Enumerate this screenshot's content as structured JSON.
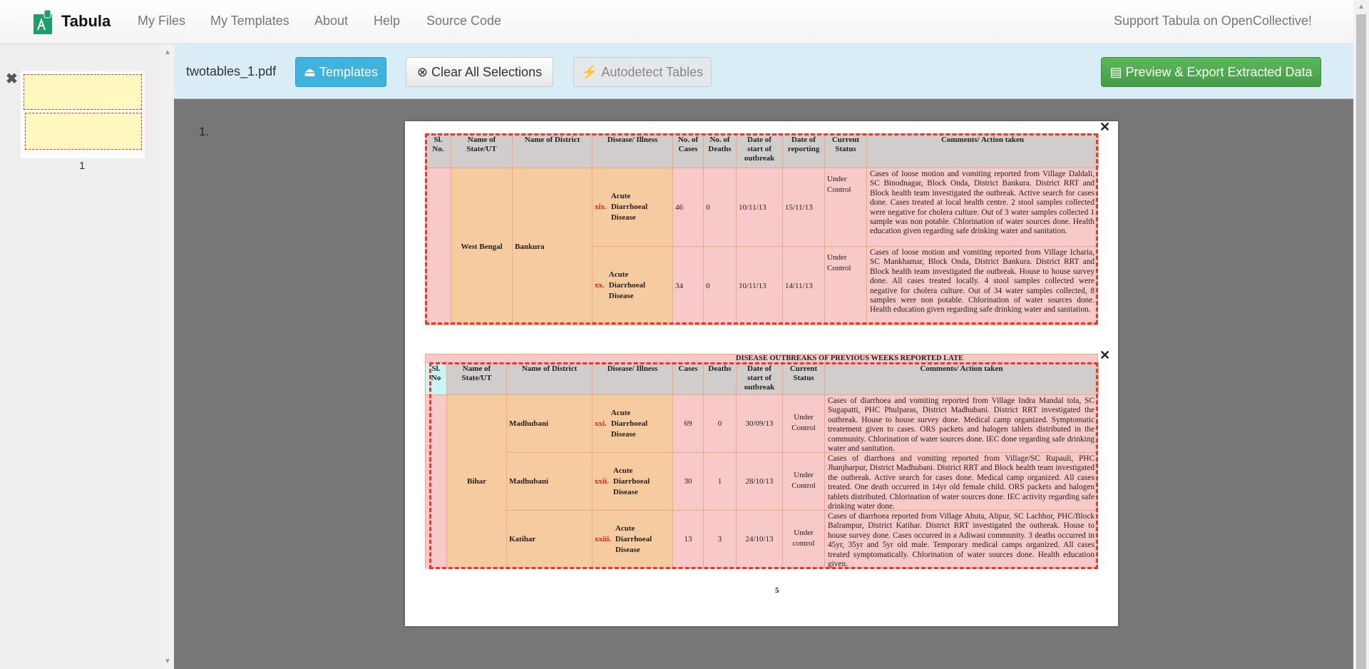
{
  "nav": {
    "brand": "Tabula",
    "links": [
      "My Files",
      "My Templates",
      "About",
      "Help",
      "Source Code"
    ],
    "support": "Support Tabula on OpenCollective!"
  },
  "toolbar": {
    "filename": "twotables_1.pdf",
    "templates": "Templates",
    "clear": "Clear All Selections",
    "autodetect": "Autodetect Tables",
    "export": "Preview & Export Extracted Data"
  },
  "sidebar": {
    "page_label": "1"
  },
  "page": {
    "number_label": "1.",
    "footer": "5"
  },
  "colors": {
    "primary": "#31b0d5",
    "success": "#4cae4c",
    "selection": "#e53935"
  },
  "table1": {
    "headers": [
      "Sl. No.",
      "Name of State/UT",
      "Name of District",
      "Disease/ Illness",
      "No. of Cases",
      "No. of Deaths",
      "Date of start of outbreak",
      "Date of reporting",
      "Current Status",
      "Comments/ Action taken"
    ],
    "state": "West Bengal",
    "district": "Bankura",
    "rows": [
      {
        "num": "xix.",
        "disease": "Acute Diarrhoeal Disease",
        "cases": "46",
        "deaths": "0",
        "start": "10/11/13",
        "reported": "15/11/13",
        "status": "Under Control",
        "comments": "Cases of loose motion and vomiting reported from Village Daldali, SC Binodnagar, Block Onda, District Bankura. District RRT and Block health team investigated the outbreak. Active search for cases done. Cases treated at local health centre. 2 stool samples collected were negative for cholera culture. Out of 3 water samples collected 1 sample was non potable. Chlorination of water sources done. Health education given regarding safe drinking water and sanitation."
      },
      {
        "num": "xx.",
        "disease": "Acute Diarrhoeal Disease",
        "cases": "34",
        "deaths": "0",
        "start": "10/11/13",
        "reported": "14/11/13",
        "status": "Under Control",
        "comments": "Cases of loose motion and vomiting reported from Village Icharia, SC Mankhamar, Block Onda, District Bankura. District RRT and Block health team investigated the outbreak. House to house survey done. All cases treated locally. 4 stool samples collected were negative for cholera culture. Out of 34 water samples collected, 8 samples were non potable. Chlorination of water sources done. Health education given regarding safe drinking water and sanitation."
      }
    ]
  },
  "table2": {
    "title": "DISEASE OUTBREAKS  OF PREVIOUS WEEKS REPORTED LATE",
    "headers": [
      "Sl. No",
      "Name of State/UT",
      "Name of District",
      "Disease/ Illness",
      "Cases",
      "Deaths",
      "Date of start of outbreak",
      "Current Status",
      "Comments/ Action taken"
    ],
    "state": "Bihar",
    "rows": [
      {
        "district": "Madhubani",
        "num": "xxi.",
        "disease": "Acute Diarrhoeal Disease",
        "cases": "69",
        "deaths": "0",
        "start": "30/09/13",
        "status": "Under Control",
        "comments": "Cases of diarrhoea and vomiting reported from Village Indra Mandal tola, SC Sugapatti, PHC Phulparas, District Madhubani. District RRT investigated the outbreak. House to house survey done. Medical camp organized. Symptomatic treatement given to cases. ORS packets and halogen tablets distributed in the community. Chlorination of water sources done. IEC done regarding safe drinking water and sanitation."
      },
      {
        "district": "Madhubani",
        "num": "xxii.",
        "disease": "Acute Diarrhoeal Disease",
        "cases": "30",
        "deaths": "1",
        "start": "28/10/13",
        "status": "Under Control",
        "comments": "Cases of diarrhoea and vomiting reported from Village/SC Rupauli, PHC Jhanjharpur, District Madhubani. District RRT and Block health team investigated the outbreak. Active search for cases done. Medical camp organized. All cases treated. One death occurred in 14yr old female child. ORS packets and halogen tablets distributed. Chlorination of water sources done. IEC activity regarding safe drinking water done."
      },
      {
        "district": "Katihar",
        "num": "xxiii.",
        "disease": "Acute Diarrhoeal Disease",
        "cases": "13",
        "deaths": "3",
        "start": "24/10/13",
        "status": "Under control",
        "comments": "Cases of diarrhoea reported from Village Ahuta, Alipur, SC Lachhor, PHC/Block Balrampur, District Katihar. District RRT investigated the outbreak.  House to house survey done. Cases occurred in a Adiwasi community. 3 deaths occurred in 45yr, 35yr and 5yr old male. Temporary medical camps organized. All cases treated symptomatically. Chlorination of water sources done. Health education given."
      }
    ]
  }
}
